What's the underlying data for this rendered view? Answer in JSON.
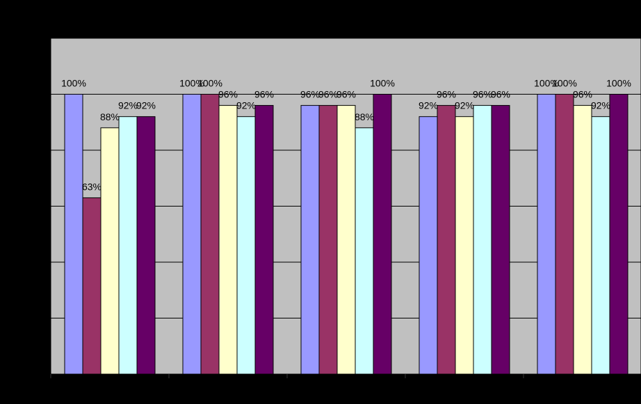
{
  "chart_data": {
    "type": "bar",
    "title": "",
    "xlabel": "",
    "ylabel": "",
    "ylim": [
      0,
      120
    ],
    "grid": true,
    "legend": "none",
    "categories": [
      "",
      "",
      "",
      "",
      ""
    ],
    "series": [
      {
        "values": [
          100,
          100,
          96,
          92,
          100
        ],
        "labels": [
          "100%",
          "100%",
          "96%",
          "92%",
          "100%"
        ],
        "color": "#9999FF"
      },
      {
        "values": [
          63,
          100,
          96,
          96,
          100
        ],
        "labels": [
          "63%",
          "100%",
          "96%",
          "96%",
          "100%"
        ],
        "color": "#993366"
      },
      {
        "values": [
          88,
          96,
          96,
          92,
          96
        ],
        "labels": [
          "88%",
          "96%",
          "96%",
          "92%",
          "96%"
        ],
        "color": "#FFFFCC"
      },
      {
        "values": [
          92,
          92,
          88,
          96,
          92
        ],
        "labels": [
          "92%",
          "92%",
          "88%",
          "96%",
          "92%"
        ],
        "color": "#CCFFFF"
      },
      {
        "values": [
          92,
          96,
          100,
          96,
          100
        ],
        "labels": [
          "92%",
          "96%",
          "100%",
          "96%",
          "100%"
        ],
        "color": "#660066"
      }
    ],
    "colors": {
      "background": "#000000",
      "plot_area": "#C0C0C0",
      "gridline": "#000000",
      "bar_outline": "#000000"
    }
  }
}
